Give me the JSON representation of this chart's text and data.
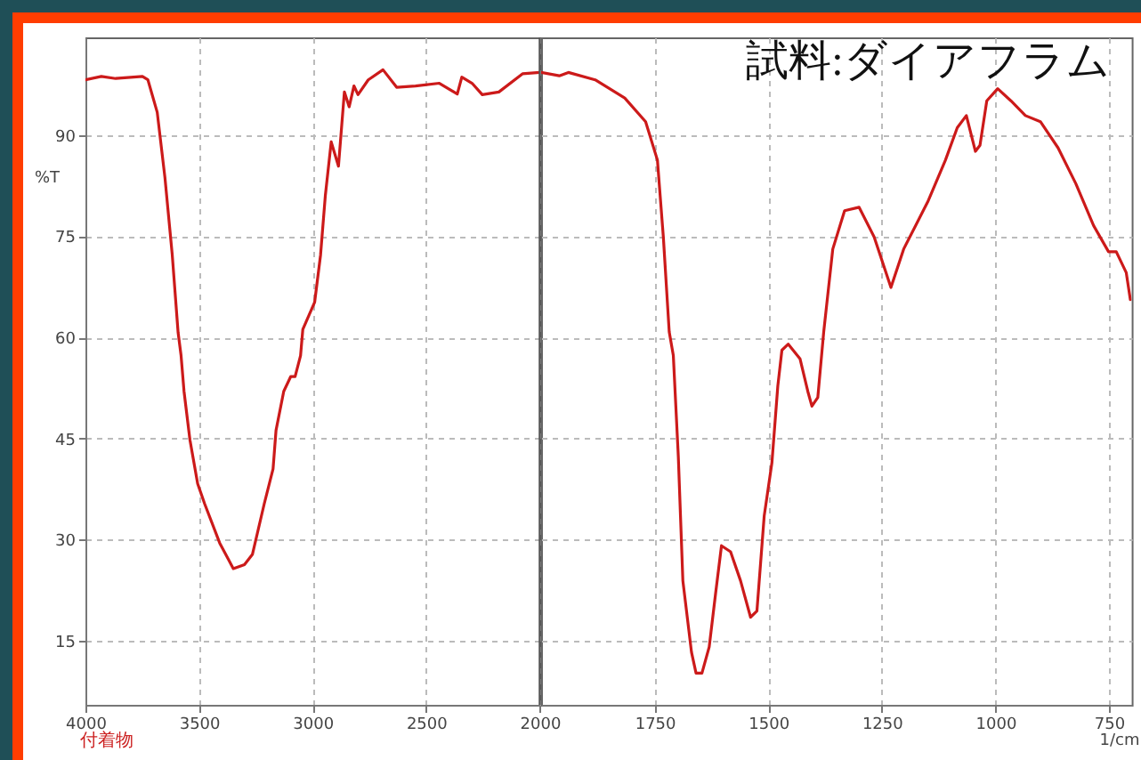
{
  "chart_data": [
    {
      "type": "line",
      "xlabel": null,
      "ylabel": "%T",
      "annotations": [
        "付着物"
      ],
      "x": [
        4000,
        3930,
        3867,
        3749,
        3725,
        3684,
        3650,
        3618,
        3592,
        3579,
        3566,
        3540,
        3506,
        3475,
        3409,
        3349,
        3300,
        3265,
        3213,
        3174,
        3161,
        3127,
        3096,
        3077,
        3053,
        3043,
        2991,
        2965,
        2944,
        2918,
        2886,
        2860,
        2839,
        2818,
        2800,
        2755,
        2690,
        2630,
        2547,
        2442,
        2363,
        2343,
        2298,
        2253,
        2180,
        2076,
        2000
      ],
      "values": [
        98.2,
        98.7,
        98.4,
        98.7,
        98.2,
        93.4,
        83.7,
        72.3,
        60.7,
        57.3,
        52,
        44.8,
        38.3,
        35.3,
        29.5,
        25.7,
        26.3,
        27.8,
        35.3,
        40.5,
        46.2,
        52,
        54.2,
        54.2,
        57.3,
        61.2,
        65.2,
        72.2,
        81,
        89,
        85.4,
        96.4,
        94.2,
        97.3,
        96,
        98.2,
        99.7,
        97.1,
        97.3,
        97.7,
        96.1,
        98.6,
        97.7,
        96,
        96.4,
        99.1,
        99.3
      ],
      "color": "#cc1a1a",
      "xlim": [
        4000,
        2000
      ],
      "xticks": [
        4000,
        3500,
        3000,
        2500,
        2000
      ],
      "ref_lines": [
        {
          "axis": "x",
          "value": 2000,
          "color": "#555555"
        }
      ],
      "ylim": [
        5.5,
        104.5
      ],
      "yticks": [
        15,
        30,
        45,
        60,
        75,
        90
      ],
      "grid": true,
      "line_style": "solid"
    },
    {
      "type": "line",
      "title": "試料:ダイアフラム",
      "xlabel": "1/cm",
      "x": [
        2000,
        1960,
        1940,
        1881,
        1816,
        1770,
        1744,
        1731,
        1718,
        1709,
        1698,
        1688,
        1669,
        1659,
        1646,
        1630,
        1616,
        1603,
        1583,
        1561,
        1539,
        1525,
        1509,
        1492,
        1479,
        1470,
        1456,
        1430,
        1413,
        1404,
        1391,
        1378,
        1358,
        1332,
        1300,
        1267,
        1230,
        1202,
        1149,
        1110,
        1084,
        1064,
        1044,
        1034,
        1019,
        995,
        966,
        934,
        901,
        862,
        823,
        784,
        751,
        734,
        712,
        703
      ],
      "values": [
        99.3,
        98.8,
        99.3,
        98.2,
        95.5,
        92,
        86.3,
        74.9,
        60.8,
        57.3,
        42.3,
        23.9,
        13.3,
        10.2,
        10.2,
        14.1,
        22,
        29.1,
        28.2,
        23.9,
        18.5,
        19.4,
        33.5,
        41.4,
        52.8,
        58.1,
        59,
        56.8,
        52,
        49.8,
        51.1,
        60.8,
        73.1,
        78.8,
        79.3,
        74.9,
        67.4,
        73.1,
        80.1,
        86.3,
        91.1,
        92.9,
        87.6,
        88.5,
        95.1,
        96.9,
        95.1,
        92.9,
        92,
        88.1,
        82.8,
        76.6,
        72.7,
        72.7,
        69.6,
        65.6
      ],
      "color": "#cc1a1a",
      "xlim": [
        2000,
        700
      ],
      "xticks": [
        1750,
        1500,
        1250,
        1000,
        750
      ],
      "ylim": [
        5.5,
        104.5
      ],
      "yticks": [
        15,
        30,
        45,
        60,
        75,
        90
      ],
      "tick_labels": "x",
      "grid": true,
      "line_style": "solid"
    }
  ]
}
